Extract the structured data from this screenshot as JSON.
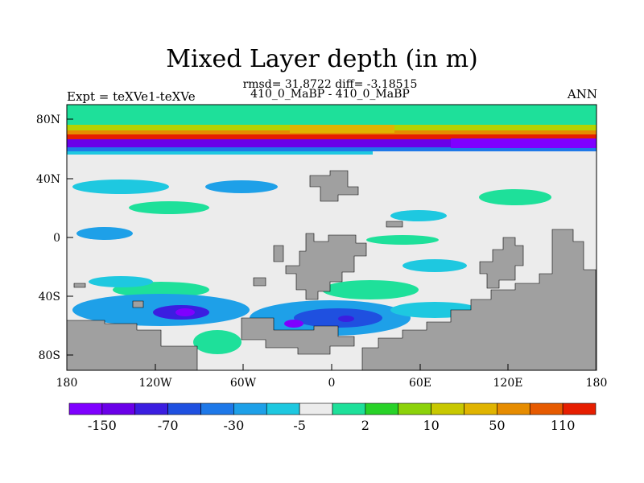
{
  "title": "Mixed Layer depth (in m)",
  "subtitle": "rmsd= 31.8722 diff= -3.18515",
  "case_label": "410_0_MaBP - 410_0_MaBP",
  "expt_label": "Expt = teXVe1-teXVe",
  "season": "ANN",
  "lat_ticks": [
    "80N",
    "40N",
    "0",
    "40S",
    "80S"
  ],
  "lon_ticks": [
    "180",
    "120W",
    "60W",
    "0",
    "60E",
    "120E",
    "180"
  ],
  "colorbar": {
    "colors": [
      "#7f00ff",
      "#6a00e8",
      "#3b1ee0",
      "#1f50e0",
      "#1e78e8",
      "#1ea0e8",
      "#1ec8e0",
      "#ececec",
      "#1ee09a",
      "#28d228",
      "#8cd20a",
      "#c8c800",
      "#e0b400",
      "#e68c00",
      "#e65a00",
      "#e61e00"
    ],
    "labels": [
      "-150",
      "-70",
      "-30",
      "-5",
      "2",
      "10",
      "50",
      "110"
    ]
  },
  "colors": {
    "land": "#a0a0a0",
    "background_ocean": "#ececec"
  }
}
